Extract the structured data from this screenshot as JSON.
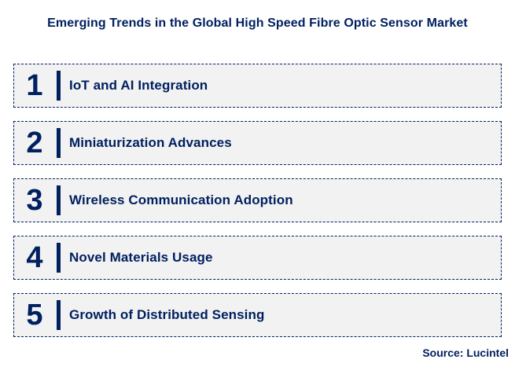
{
  "title": "Emerging Trends in the Global High Speed Fibre Optic Sensor Market",
  "trends": [
    {
      "number": "1",
      "label": "IoT and AI Integration"
    },
    {
      "number": "2",
      "label": "Miniaturization Advances"
    },
    {
      "number": "3",
      "label": "Wireless Communication Adoption"
    },
    {
      "number": "4",
      "label": "Novel Materials Usage"
    },
    {
      "number": "5",
      "label": "Growth of Distributed Sensing"
    }
  ],
  "source": "Source: Lucintel",
  "colors": {
    "accent_navy": "#002060",
    "row_background": "#f2f2f2",
    "page_background": "#ffffff",
    "border": "#002060"
  }
}
